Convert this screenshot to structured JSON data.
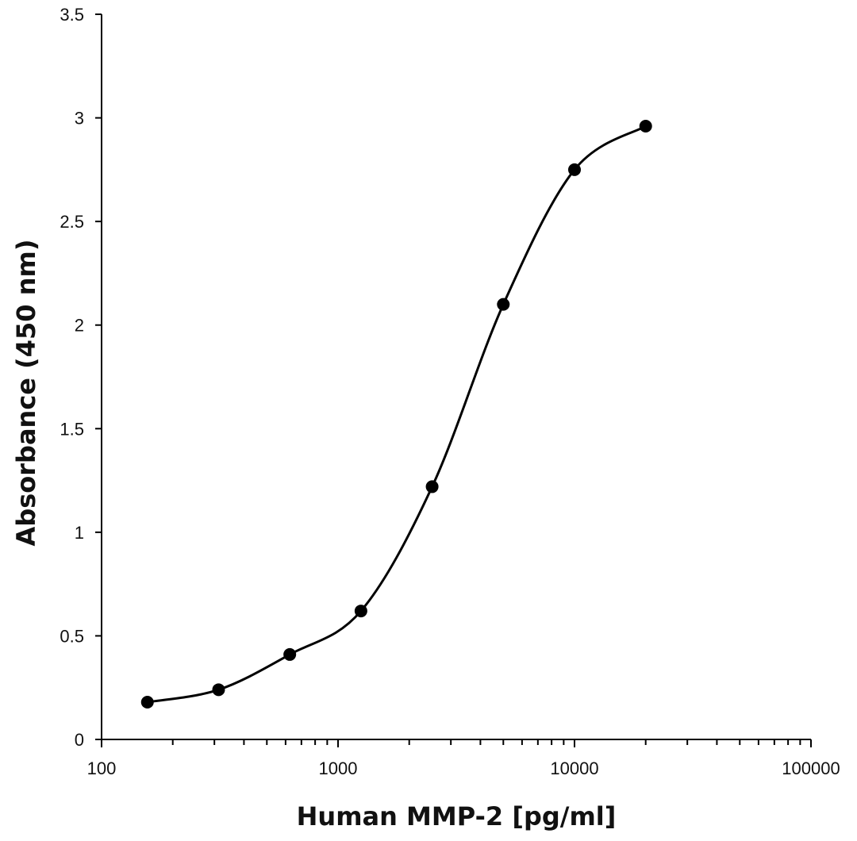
{
  "chart_data": {
    "type": "scatter",
    "xlabel": "Human MMP-2 [pg/ml]",
    "ylabel": "Absorbance (450 nm)",
    "xscale": "log",
    "xlim": [
      100,
      100000
    ],
    "ylim": [
      0,
      3.5
    ],
    "x_ticks": [
      100,
      1000,
      10000,
      100000
    ],
    "x_tick_labels": [
      "100",
      "1000",
      "10000",
      "100000"
    ],
    "y_ticks": [
      0,
      0.5,
      1,
      1.5,
      2,
      2.5,
      3,
      3.5
    ],
    "y_tick_labels": [
      "0",
      "0.5",
      "1",
      "1.5",
      "2",
      "2.5",
      "3",
      "3.5"
    ],
    "grid": false,
    "legend": "none",
    "series": [
      {
        "x": [
          156.25,
          312.5,
          625,
          1250,
          2500,
          5000,
          10000,
          20000
        ],
        "y": [
          0.18,
          0.24,
          0.41,
          0.62,
          1.22,
          2.1,
          2.75,
          2.96
        ],
        "marker": "circle",
        "line": "smooth",
        "color": "#000000"
      }
    ]
  }
}
